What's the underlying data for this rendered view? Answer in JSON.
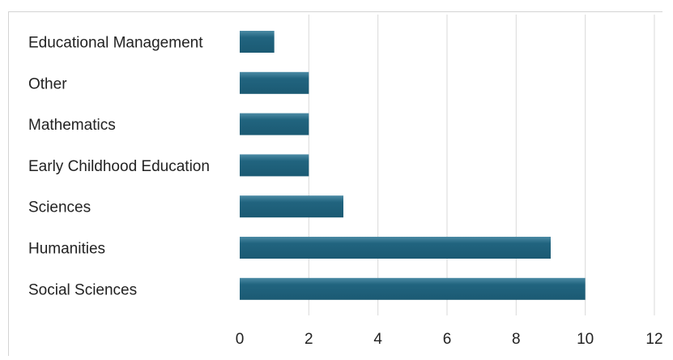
{
  "chart_data": {
    "type": "bar",
    "orientation": "horizontal",
    "categories": [
      "Educational Management",
      "Other",
      "Mathematics",
      "Early Childhood Education",
      "Sciences",
      "Humanities",
      "Social Sciences"
    ],
    "values": [
      1,
      2,
      2,
      2,
      3,
      9,
      10
    ],
    "title": "",
    "xlabel": "",
    "ylabel": "",
    "xlim": [
      0,
      12
    ],
    "xticks": [
      0,
      2,
      4,
      6,
      8,
      10,
      12
    ],
    "xtick_labels": [
      "0",
      "2",
      "4",
      "6",
      "8",
      "10",
      "12"
    ],
    "grid": "vertical",
    "legend": "none",
    "colors": {
      "bar": "#21647f",
      "bar_highlight": "#4c8ba5",
      "grid": "#d9d9d9",
      "text": "#222222"
    }
  }
}
